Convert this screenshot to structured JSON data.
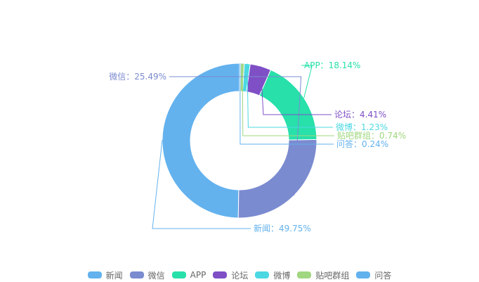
{
  "chart_data": {
    "type": "pie",
    "variant": "donut",
    "title": "",
    "legend_position": "bottom",
    "slices": [
      {
        "label": "新闻",
        "value": 49.75,
        "display": "新闻：49.75%",
        "color": "#63b2ee"
      },
      {
        "label": "微信",
        "value": 25.49,
        "display": "微信：25.49%",
        "color": "#7b8bd0"
      },
      {
        "label": "APP",
        "value": 18.14,
        "display": "APP：18.14%",
        "color": "#27e0aa"
      },
      {
        "label": "论坛",
        "value": 4.41,
        "display": "论坛：4.41%",
        "color": "#7f4fc6"
      },
      {
        "label": "微博",
        "value": 1.23,
        "display": "微博：1.23%",
        "color": "#4bd8e2"
      },
      {
        "label": "贴吧群组",
        "value": 0.74,
        "display": "贴吧群组：0.74%",
        "color": "#a0d780"
      },
      {
        "label": "问答",
        "value": 0.24,
        "display": "问答：0.24%",
        "color": "#63b2ee"
      }
    ]
  }
}
